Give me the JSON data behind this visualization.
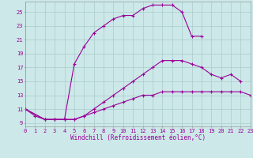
{
  "xlabel": "Windchill (Refroidissement éolien,°C)",
  "xlim": [
    0,
    23
  ],
  "ylim": [
    8.5,
    26.5
  ],
  "xticks": [
    0,
    1,
    2,
    3,
    4,
    5,
    6,
    7,
    8,
    9,
    10,
    11,
    12,
    13,
    14,
    15,
    16,
    17,
    18,
    19,
    20,
    21,
    22,
    23
  ],
  "yticks": [
    9,
    11,
    13,
    15,
    17,
    19,
    21,
    23,
    25
  ],
  "bg_color": "#cce8e8",
  "line_color": "#990099",
  "grid_color": "#aacccc",
  "curve1_x": [
    0,
    1,
    2,
    3,
    4,
    5,
    6,
    7,
    8,
    9,
    10,
    11,
    12,
    13,
    14,
    15,
    16,
    17,
    18
  ],
  "curve1_y": [
    11,
    10,
    9.5,
    9.5,
    9.5,
    17.5,
    20,
    22,
    23,
    24,
    24.5,
    24.5,
    25.5,
    26,
    26,
    26,
    25,
    21.5,
    21.5
  ],
  "curve2_x": [
    0,
    2,
    3,
    4,
    5,
    6,
    7,
    8,
    9,
    10,
    11,
    12,
    13,
    14,
    15,
    16,
    17,
    18,
    19,
    20,
    21,
    22
  ],
  "curve2_y": [
    11,
    9.5,
    9.5,
    9.5,
    9.5,
    10,
    11,
    12,
    13,
    14,
    15,
    16,
    17,
    18,
    18,
    18,
    17.5,
    17,
    16,
    15.5,
    16,
    15
  ],
  "curve3_x": [
    0,
    2,
    3,
    4,
    5,
    6,
    7,
    8,
    9,
    10,
    11,
    12,
    13,
    14,
    15,
    16,
    17,
    18,
    19,
    20,
    21,
    22,
    23
  ],
  "curve3_y": [
    11,
    9.5,
    9.5,
    9.5,
    9.5,
    10,
    10.5,
    11,
    11.5,
    12,
    12.5,
    13,
    13,
    13.5,
    13.5,
    13.5,
    13.5,
    13.5,
    13.5,
    13.5,
    13.5,
    13.5,
    13
  ],
  "tick_fontsize": 5.0,
  "xlabel_fontsize": 5.5
}
